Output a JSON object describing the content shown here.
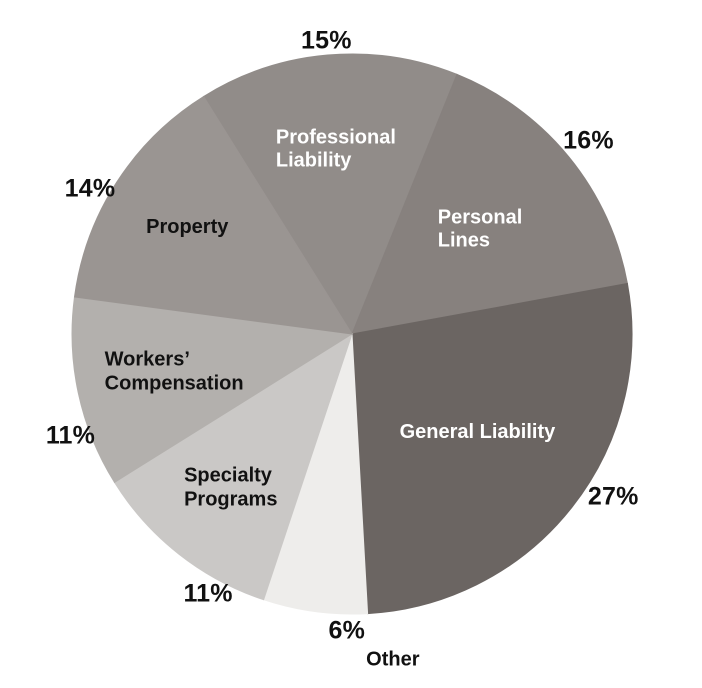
{
  "chart_data": {
    "type": "pie",
    "title": "",
    "categories": [
      "Professional Liability",
      "Personal Lines",
      "General Liability",
      "Other",
      "Specialty Programs",
      "Workers’ Compensation",
      "Property"
    ],
    "values": [
      15,
      16,
      27,
      6,
      11,
      11,
      14
    ],
    "legend": "none",
    "background": "#ffffff",
    "percent_label_color": "#111111",
    "start_angle_deg": -32,
    "direction": "clockwise",
    "slices": [
      {
        "label": "Professional Liability",
        "lines": [
          "Professional",
          "Liability"
        ],
        "value": 15,
        "pct": "15%",
        "color": "#918c89",
        "text_color": "#ffffff",
        "label_inside": true,
        "label_r": 0.66,
        "pct_r": 1.05
      },
      {
        "label": "Personal Lines",
        "lines": [
          "Personal",
          "Lines"
        ],
        "value": 16,
        "pct": "16%",
        "color": "#87817e",
        "text_color": "#ffffff",
        "label_inside": true,
        "label_r": 0.59,
        "pct_r": 1.09
      },
      {
        "label": "General Liability",
        "lines": [
          "General Liability"
        ],
        "value": 27,
        "pct": "27%",
        "color": "#6b6562",
        "text_color": "#ffffff",
        "label_inside": true,
        "label_r": 0.57,
        "pct_r": 1.1,
        "pct_angle": 122
      },
      {
        "label": "Other",
        "lines": [
          "Other"
        ],
        "value": 6,
        "pct": "6%",
        "color": "#eeedeb",
        "text_color": "#111111",
        "label_inside": false,
        "pct_r": 1.06,
        "pct_angle": 181
      },
      {
        "label": "Specialty Programs",
        "lines": [
          "Specialty",
          "Programs"
        ],
        "value": 11,
        "pct": "11%",
        "color": "#cac8c6",
        "text_color": "#111111",
        "label_inside": true,
        "label_r": 0.7,
        "pct_r": 1.06,
        "pct_angle": 209
      },
      {
        "label": "Workers’ Compensation",
        "lines": [
          "Workers’",
          "Compensation"
        ],
        "value": 11,
        "pct": "11%",
        "color": "#b3b0ad",
        "text_color": "#111111",
        "label_inside": true,
        "label_r": 0.65,
        "pct_r": 1.07,
        "pct_angle": 250
      },
      {
        "label": "Property",
        "lines": [
          "Property"
        ],
        "value": 14,
        "pct": "14%",
        "color": "#9a9592",
        "text_color": "#111111",
        "label_inside": true,
        "label_r": 0.7,
        "pct_r": 1.07,
        "pct_angle": 299
      }
    ]
  }
}
